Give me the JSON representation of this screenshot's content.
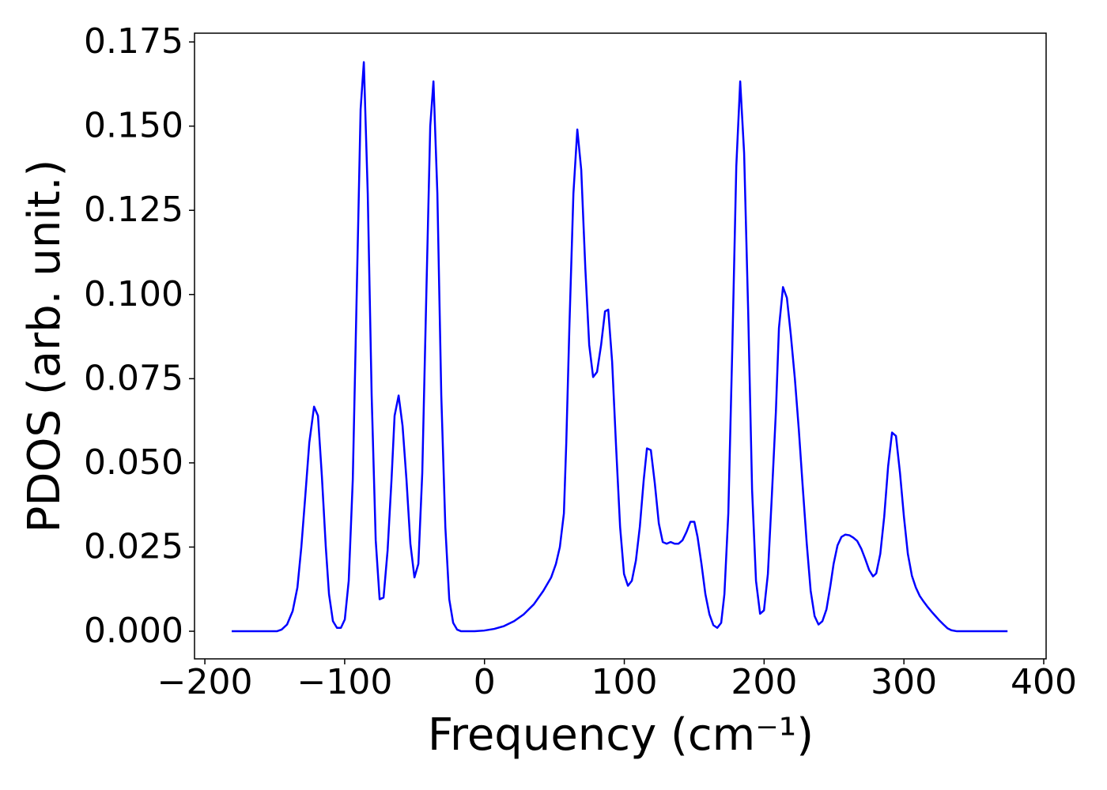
{
  "chart_data": {
    "type": "line",
    "xlabel": "Frequency (cm⁻¹)",
    "ylabel": "PDOS (arb. unit.)",
    "x": [
      -180.8,
      -148.5,
      -145.1,
      -141.2,
      -137.2,
      -133.8,
      -131,
      -128.2,
      -125.3,
      -121.9,
      -119.1,
      -116.3,
      -113.5,
      -111.2,
      -108.4,
      -105.5,
      -102.7,
      -99.9,
      -97.1,
      -94.2,
      -91.4,
      -88.6,
      -86.3,
      -83.5,
      -80.7,
      -77.8,
      -75,
      -72.2,
      -69.3,
      -66.5,
      -64.3,
      -61.4,
      -58.6,
      -55.8,
      -53,
      -50.1,
      -47.3,
      -44.5,
      -41.6,
      -38.8,
      -36.5,
      -33.7,
      -30.9,
      -28,
      -25.2,
      -22.4,
      -19.6,
      -16.7,
      -7.1,
      -0.3,
      7,
      13.8,
      21.2,
      28,
      35.3,
      42.1,
      47.7,
      51.1,
      53.9,
      56.8,
      58.5,
      60.7,
      63.6,
      66.4,
      69.2,
      72.1,
      74.9,
      77.7,
      80.5,
      83.4,
      86.2,
      88.5,
      91.3,
      94.1,
      97,
      99.8,
      102.6,
      105.4,
      108.3,
      111.1,
      113.9,
      116.2,
      119,
      121.8,
      124.7,
      127.5,
      130.3,
      133.1,
      136,
      138.8,
      141.6,
      144.5,
      147.3,
      150.1,
      152.4,
      155.2,
      158,
      160.9,
      163.7,
      166.5,
      169.3,
      171.6,
      174.4,
      177.3,
      180.1,
      182.9,
      185.7,
      188.6,
      191.4,
      194.2,
      197.1,
      199.9,
      202.7,
      205.5,
      208.4,
      210.6,
      213.5,
      216.3,
      219.1,
      222,
      224.8,
      227.6,
      230.5,
      233.3,
      236.1,
      238.9,
      241.7,
      244.6,
      247.4,
      249.7,
      252.5,
      255.3,
      258.1,
      261,
      263.8,
      266.6,
      269.5,
      272.3,
      275.1,
      277.9,
      280.2,
      283.1,
      285.9,
      288.7,
      291.5,
      294.3,
      297.2,
      300,
      302.8,
      305.7,
      308.5,
      311.3,
      314.1,
      317,
      319.8,
      322.6,
      325.4,
      328.3,
      331.1,
      333.9,
      337.9,
      374.1
    ],
    "series": [
      {
        "color": "#0000ff",
        "values": [
          0,
          0,
          0.0005,
          0.002,
          0.006,
          0.013,
          0.025,
          0.04,
          0.056,
          0.0667,
          0.064,
          0.046,
          0.025,
          0.011,
          0.003,
          0.001,
          0.001,
          0.0035,
          0.015,
          0.045,
          0.1,
          0.155,
          0.169,
          0.13,
          0.07,
          0.027,
          0.0095,
          0.01,
          0.024,
          0.045,
          0.064,
          0.07,
          0.061,
          0.045,
          0.026,
          0.016,
          0.02,
          0.047,
          0.1,
          0.15,
          0.1633,
          0.13,
          0.07,
          0.031,
          0.0095,
          0.0025,
          0.0005,
          0,
          0,
          0.0002,
          0.0007,
          0.0015,
          0.003,
          0.005,
          0.008,
          0.012,
          0.016,
          0.02,
          0.025,
          0.035,
          0.056,
          0.09,
          0.13,
          0.149,
          0.137,
          0.108,
          0.085,
          0.0755,
          0.077,
          0.085,
          0.095,
          0.0955,
          0.08,
          0.055,
          0.031,
          0.017,
          0.0135,
          0.015,
          0.021,
          0.031,
          0.045,
          0.0543,
          0.0538,
          0.044,
          0.032,
          0.0265,
          0.026,
          0.0265,
          0.026,
          0.026,
          0.027,
          0.0295,
          0.0325,
          0.0325,
          0.028,
          0.02,
          0.011,
          0.005,
          0.0018,
          0.001,
          0.0025,
          0.011,
          0.035,
          0.085,
          0.138,
          0.1633,
          0.142,
          0.095,
          0.042,
          0.015,
          0.0052,
          0.0062,
          0.017,
          0.04,
          0.065,
          0.09,
          0.1022,
          0.099,
          0.088,
          0.075,
          0.06,
          0.043,
          0.026,
          0.012,
          0.0045,
          0.002,
          0.003,
          0.0065,
          0.0135,
          0.02,
          0.0255,
          0.028,
          0.0287,
          0.0285,
          0.0278,
          0.0268,
          0.0245,
          0.0215,
          0.0182,
          0.0163,
          0.0172,
          0.023,
          0.034,
          0.049,
          0.059,
          0.058,
          0.047,
          0.034,
          0.023,
          0.0165,
          0.013,
          0.0105,
          0.0088,
          0.0072,
          0.0058,
          0.0045,
          0.0032,
          0.002,
          0.0009,
          0.0003,
          0,
          0
        ]
      }
    ],
    "xlim": [
      -207.4,
      401.7
    ],
    "ylim": [
      -0.0082,
      0.1776
    ],
    "xticks": [
      {
        "value": -200,
        "label": "−200"
      },
      {
        "value": -100,
        "label": "−100"
      },
      0,
      100,
      200,
      300,
      400
    ],
    "yticks": [
      {
        "value": 0,
        "label": "0.000"
      },
      0.025,
      {
        "value": 0.05,
        "label": "0.050"
      },
      0.075,
      {
        "value": 0.1,
        "label": "0.100"
      },
      0.125,
      {
        "value": 0.15,
        "label": "0.150"
      },
      0.175
    ],
    "grid": false
  }
}
